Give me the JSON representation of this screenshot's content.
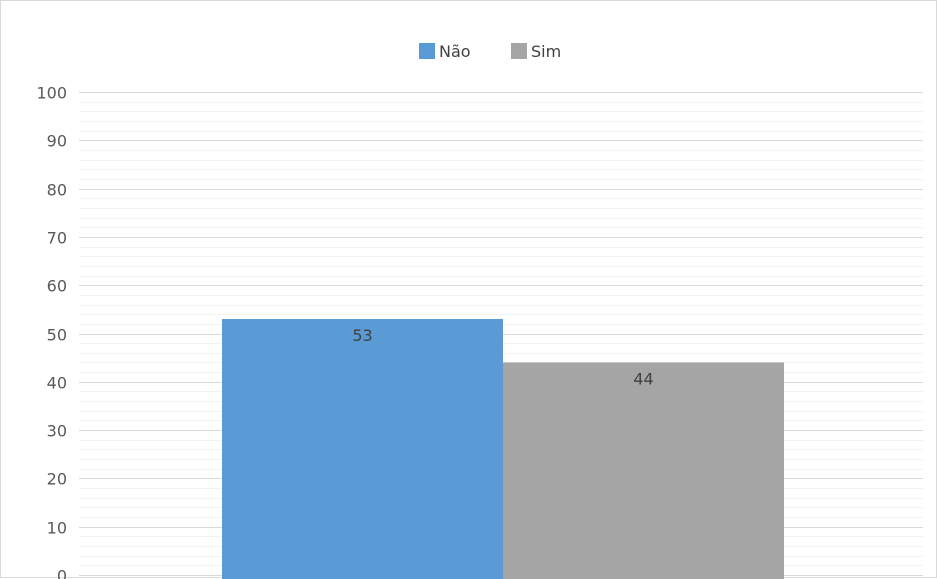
{
  "chart_data": {
    "type": "bar",
    "categories": [
      ""
    ],
    "series": [
      {
        "name": "Não",
        "values": [
          53
        ],
        "color": "#5b9bd5"
      },
      {
        "name": "Sim",
        "values": [
          44
        ],
        "color": "#a5a5a5"
      }
    ],
    "ylim": [
      0,
      100
    ],
    "yticks": [
      "100",
      "90",
      "80",
      "70",
      "60",
      "50",
      "40",
      "30",
      "20",
      "10",
      "0"
    ],
    "data_labels": [
      "53",
      "44"
    ],
    "legend_position": "top-center",
    "grid": true,
    "gridline_color": "#d9d9d9"
  }
}
